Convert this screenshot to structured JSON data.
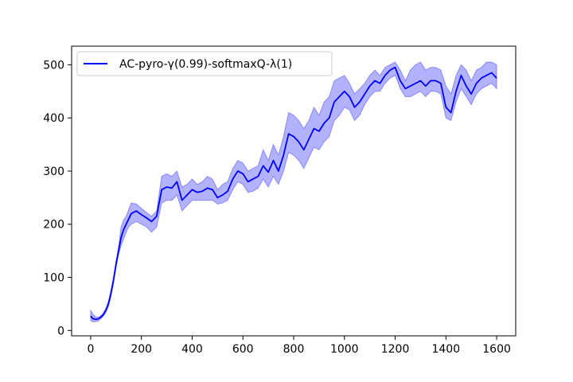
{
  "chart_data": {
    "type": "line",
    "title": "",
    "xlabel": "",
    "ylabel": "",
    "xlim": [
      -75,
      1675
    ],
    "ylim": [
      -10,
      535
    ],
    "xticks": [
      0,
      200,
      400,
      600,
      800,
      1000,
      1200,
      1400,
      1600
    ],
    "yticks": [
      0,
      100,
      200,
      300,
      400,
      500
    ],
    "grid": false,
    "legend_position": "top-left",
    "series": [
      {
        "name": "AC-pyro-γ(0.99)-softmaxQ-λ(1)",
        "color": "#0000ff",
        "band_color": "#0000ff",
        "band_opacity": 0.3,
        "x": [
          0,
          10,
          20,
          30,
          40,
          50,
          60,
          70,
          80,
          90,
          100,
          110,
          120,
          130,
          140,
          150,
          160,
          180,
          200,
          220,
          240,
          260,
          280,
          300,
          320,
          340,
          360,
          380,
          400,
          420,
          440,
          460,
          480,
          500,
          520,
          540,
          560,
          580,
          600,
          620,
          640,
          660,
          680,
          700,
          720,
          740,
          760,
          780,
          800,
          820,
          840,
          860,
          880,
          900,
          920,
          940,
          960,
          980,
          1000,
          1020,
          1040,
          1060,
          1080,
          1100,
          1120,
          1140,
          1160,
          1180,
          1200,
          1220,
          1240,
          1260,
          1280,
          1300,
          1320,
          1340,
          1360,
          1380,
          1400,
          1420,
          1440,
          1460,
          1480,
          1500,
          1520,
          1540,
          1560,
          1580,
          1600
        ],
        "y": [
          27,
          22,
          21,
          22,
          25,
          30,
          38,
          50,
          70,
          95,
          125,
          150,
          175,
          190,
          200,
          210,
          220,
          225,
          218,
          212,
          205,
          215,
          265,
          270,
          268,
          280,
          245,
          255,
          265,
          260,
          262,
          268,
          265,
          250,
          255,
          262,
          285,
          300,
          295,
          280,
          285,
          290,
          310,
          298,
          320,
          300,
          330,
          370,
          365,
          355,
          340,
          360,
          380,
          375,
          390,
          400,
          430,
          440,
          450,
          440,
          420,
          430,
          445,
          460,
          470,
          465,
          480,
          490,
          495,
          470,
          455,
          460,
          465,
          470,
          460,
          470,
          470,
          465,
          420,
          410,
          450,
          480,
          460,
          445,
          465,
          475,
          480,
          485,
          475
        ],
        "upper": [
          38,
          30,
          26,
          25,
          28,
          33,
          42,
          55,
          76,
          100,
          130,
          158,
          195,
          208,
          215,
          228,
          240,
          238,
          230,
          222,
          215,
          225,
          290,
          295,
          290,
          300,
          270,
          275,
          285,
          275,
          280,
          290,
          285,
          265,
          275,
          280,
          305,
          320,
          315,
          300,
          305,
          310,
          340,
          320,
          350,
          330,
          365,
          410,
          405,
          395,
          380,
          395,
          420,
          405,
          430,
          440,
          470,
          475,
          480,
          465,
          445,
          455,
          465,
          480,
          490,
          480,
          495,
          500,
          505,
          490,
          470,
          490,
          500,
          505,
          490,
          495,
          495,
          490,
          460,
          445,
          480,
          500,
          490,
          470,
          490,
          495,
          505,
          505,
          500
        ],
        "lower": [
          18,
          16,
          17,
          18,
          22,
          27,
          34,
          45,
          64,
          88,
          118,
          142,
          160,
          172,
          185,
          195,
          200,
          205,
          200,
          195,
          185,
          195,
          240,
          245,
          245,
          255,
          225,
          235,
          245,
          245,
          245,
          245,
          245,
          238,
          240,
          245,
          265,
          280,
          275,
          260,
          262,
          268,
          285,
          270,
          290,
          275,
          300,
          335,
          330,
          320,
          305,
          325,
          345,
          340,
          355,
          365,
          395,
          405,
          420,
          415,
          395,
          405,
          425,
          440,
          450,
          450,
          465,
          475,
          480,
          455,
          440,
          440,
          445,
          450,
          440,
          450,
          450,
          445,
          400,
          395,
          430,
          455,
          440,
          425,
          445,
          455,
          460,
          465,
          455
        ]
      }
    ]
  }
}
